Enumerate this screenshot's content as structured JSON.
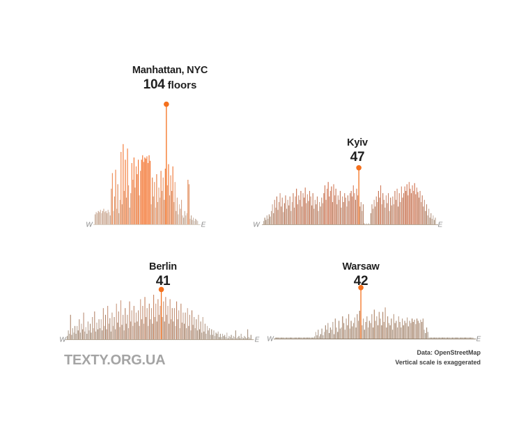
{
  "footer": {
    "logo": "TEXTY.ORG.UA",
    "source": "Data: OpenStreetMap",
    "note": "Vertical scale is exaggerated"
  },
  "colors": {
    "dot": "#f4701d",
    "title": "#1e1e1e",
    "axis_label": "#8c8c8c",
    "logo": "#a4a4a4",
    "footer_text": "#3f3f3f"
  },
  "chart_data": [
    {
      "type": "bar",
      "city": "Manhattan, NYC",
      "peak_value": "104",
      "peak_unit": " floors",
      "max_floors": 104,
      "bars_unit": "floors",
      "peak_index": 66,
      "x_axis": {
        "left": "W",
        "right": "E"
      },
      "palette": {
        "base": "#b3a496",
        "accent": "#f2661b",
        "baseline": "#d8cfc3"
      },
      "bars": [
        9,
        11,
        10,
        12,
        11,
        13,
        10,
        12,
        14,
        11,
        12,
        10,
        13,
        11,
        8,
        32,
        46,
        12,
        25,
        49,
        14,
        36,
        10,
        22,
        65,
        18,
        72,
        30,
        58,
        24,
        68,
        35,
        15,
        28,
        55,
        40,
        60,
        33,
        52,
        45,
        58,
        26,
        48,
        58,
        62,
        56,
        60,
        59,
        61,
        55,
        62,
        57,
        18,
        42,
        25,
        38,
        15,
        45,
        20,
        33,
        24,
        48,
        30,
        42,
        22,
        50,
        104,
        35,
        54,
        26,
        44,
        30,
        52,
        20,
        38,
        12,
        24,
        9,
        18,
        14,
        22,
        8,
        6,
        12,
        8,
        10,
        40,
        36,
        5,
        8,
        4,
        6,
        3,
        5,
        4,
        3
      ]
    },
    {
      "type": "bar",
      "city": "Kyiv",
      "peak_value": "47",
      "peak_unit": "",
      "max_floors": 47,
      "bars_unit": "floors",
      "peak_index": 87,
      "x_axis": {
        "left": "W",
        "right": "E"
      },
      "palette": {
        "base": "#97856f",
        "accent": "#d95b30",
        "baseline": "#b5a795"
      },
      "bars": [
        3,
        6,
        4,
        8,
        5,
        9,
        7,
        12,
        18,
        10,
        22,
        15,
        25,
        13,
        20,
        28,
        16,
        24,
        11,
        19,
        26,
        14,
        22,
        17,
        25,
        12,
        20,
        28,
        15,
        25,
        32,
        18,
        26,
        22,
        30,
        16,
        28,
        24,
        33,
        19,
        27,
        21,
        30,
        25,
        17,
        28,
        14,
        22,
        18,
        25,
        12,
        20,
        16,
        24,
        19,
        28,
        35,
        22,
        32,
        38,
        25,
        30,
        34,
        20,
        36,
        26,
        32,
        18,
        26,
        22,
        30,
        15,
        25,
        20,
        28,
        24,
        16,
        26,
        21,
        28,
        30,
        25,
        35,
        28,
        22,
        32,
        26,
        47,
        16,
        20,
        12,
        18,
        1,
        0,
        1,
        0,
        1,
        0,
        10,
        18,
        14,
        22,
        16,
        25,
        20,
        30,
        24,
        35,
        18,
        28,
        22,
        15,
        26,
        19,
        28,
        12,
        24,
        17,
        25,
        18,
        30,
        22,
        32,
        16,
        28,
        20,
        34,
        24,
        28,
        34,
        30,
        36,
        26,
        38,
        32,
        28,
        35,
        30,
        37,
        27,
        33,
        29,
        24,
        30,
        20,
        26,
        16,
        22,
        12,
        18,
        8,
        14,
        6,
        10,
        5,
        8,
        4,
        6
      ]
    },
    {
      "type": "bar",
      "city": "Berlin",
      "peak_value": "41",
      "peak_unit": "",
      "max_floors": 41,
      "bars_unit": "floors",
      "peak_index": 86,
      "x_axis": {
        "left": "W",
        "right": "E"
      },
      "palette": {
        "base": "#8e8170",
        "accent": "#cc7a52",
        "baseline": "#b5a795"
      },
      "bars": [
        3,
        8,
        5,
        22,
        4,
        10,
        6,
        12,
        5,
        12,
        8,
        18,
        6,
        14,
        9,
        24,
        7,
        11,
        5,
        16,
        8,
        14,
        6,
        20,
        10,
        25,
        7,
        15,
        9,
        18,
        10,
        18,
        8,
        28,
        12,
        22,
        9,
        30,
        14,
        19,
        7,
        24,
        12,
        20,
        9,
        32,
        15,
        25,
        11,
        35,
        13,
        22,
        8,
        28,
        14,
        22,
        10,
        34,
        16,
        26,
        12,
        30,
        15,
        24,
        16,
        26,
        12,
        36,
        18,
        30,
        14,
        38,
        20,
        28,
        12,
        32,
        18,
        28,
        14,
        40,
        20,
        32,
        16,
        36,
        22,
        30,
        41,
        20,
        34,
        16,
        38,
        22,
        30,
        14,
        36,
        18,
        28,
        16,
        28,
        12,
        34,
        18,
        26,
        10,
        32,
        15,
        24,
        14,
        24,
        10,
        28,
        12,
        22,
        8,
        26,
        13,
        20,
        10,
        18,
        8,
        22,
        9,
        16,
        6,
        20,
        7,
        14,
        5,
        12,
        8,
        10,
        4,
        9,
        4,
        8,
        3,
        6,
        5,
        7,
        2,
        5,
        2,
        5,
        3,
        4,
        2,
        6,
        1,
        3,
        2,
        4,
        1,
        3,
        2,
        8,
        1,
        2,
        3,
        1,
        5,
        2,
        1,
        3,
        2,
        1,
        9,
        2,
        1,
        4
      ]
    },
    {
      "type": "bar",
      "city": "Warsaw",
      "peak_value": "42",
      "peak_unit": "",
      "max_floors": 42,
      "bars_unit": "floors",
      "peak_index": 70,
      "x_axis": {
        "left": "W",
        "right": "E"
      },
      "palette": {
        "base": "#8c7b68",
        "accent": "#b8744c",
        "baseline": "#94836f"
      },
      "bars": [
        1,
        1,
        1,
        1,
        1,
        1,
        1,
        1,
        1,
        1,
        1,
        1,
        1,
        1,
        1,
        1,
        1,
        1,
        1,
        1,
        1,
        1,
        1,
        1,
        1,
        1,
        1,
        1,
        1,
        1,
        1,
        1,
        2,
        6,
        3,
        8,
        2,
        4,
        9,
        3,
        6,
        12,
        8,
        14,
        5,
        10,
        8,
        15,
        4,
        18,
        10,
        6,
        16,
        9,
        10,
        20,
        14,
        8,
        18,
        12,
        22,
        9,
        16,
        11,
        14,
        19,
        10,
        22,
        16,
        25,
        42,
        12,
        18,
        8,
        15,
        20,
        10,
        16,
        14,
        22,
        10,
        26,
        16,
        20,
        12,
        24,
        18,
        12,
        24,
        15,
        28,
        10,
        20,
        14,
        12,
        18,
        8,
        22,
        14,
        16,
        10,
        20,
        15,
        10,
        18,
        12,
        16,
        14,
        19,
        11,
        16,
        14,
        18,
        15,
        17,
        13,
        18,
        16,
        14,
        17,
        15,
        18,
        8,
        5,
        10,
        6,
        1,
        1,
        1,
        1,
        1,
        1,
        1,
        1,
        1,
        1,
        1,
        1,
        1,
        1,
        1,
        1,
        1,
        1,
        1,
        1,
        1,
        1,
        1,
        1,
        1,
        1,
        1,
        1,
        1,
        1,
        1,
        1,
        1,
        1,
        1,
        1,
        1
      ]
    }
  ]
}
